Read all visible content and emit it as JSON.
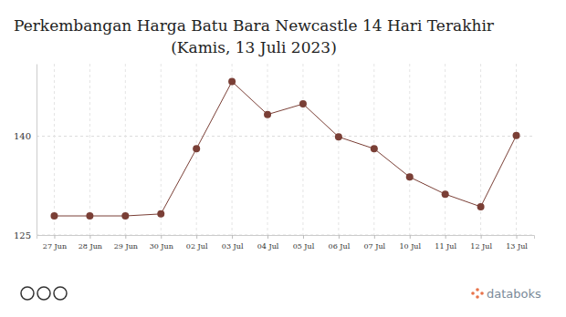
{
  "chart_data": {
    "type": "line",
    "title": "Perkembangan Harga Batu Bara Newcastle 14 Hari Terakhir",
    "subtitle": "(Kamis, 13 Juli 2023)",
    "categories": [
      "27 Jun",
      "28 Jun",
      "29 Jun",
      "30 Jun",
      "02 Jul",
      "03 Jul",
      "04 Jul",
      "05 Jul",
      "06 Jul",
      "07 Jul",
      "10 Jul",
      "11 Jul",
      "12 Jul",
      "13 Jul"
    ],
    "values": [
      127.9,
      127.9,
      127.9,
      128.2,
      138.1,
      148.3,
      143.3,
      144.9,
      139.9,
      138.1,
      133.8,
      131.2,
      129.3,
      140.1
    ],
    "color": "#7a3f36",
    "marker": "circle",
    "ylim": [
      125,
      151
    ],
    "yticks": [
      125,
      140
    ],
    "grid": true,
    "annotations": [
      "databoks"
    ]
  }
}
